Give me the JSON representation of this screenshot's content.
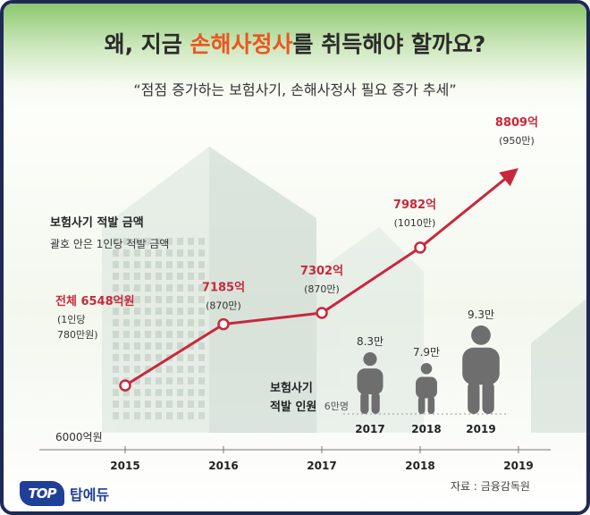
{
  "header": {
    "title_pre": "왜, 지금 ",
    "title_highlight": "손해사정사",
    "title_post": "를 취득해야 할까요?",
    "subtitle": "“점점 증가하는 보험사기, 손해사정사 필요 증가 추세”"
  },
  "legend": {
    "amount_title": "보험사기 적발 금액",
    "amount_note": "괄호 안은 1인당 적발 금액",
    "people_title_line1": "보험사기",
    "people_title_line2": "적발 인원"
  },
  "chart_data": [
    {
      "type": "line",
      "x": [
        "2015",
        "2016",
        "2017",
        "2018",
        "2019"
      ],
      "series": [
        {
          "values": [
            6548,
            7185,
            7302,
            7982,
            8809
          ]
        }
      ],
      "point_labels": [
        "전체 6548억원",
        "7185억",
        "7302억",
        "7982억",
        "8809억"
      ],
      "sub_labels": [
        [
          "(1인당",
          "780만원)"
        ],
        [
          "(870만)"
        ],
        [
          "(870만)"
        ],
        [
          "(1010만)"
        ],
        [
          "(950만)"
        ]
      ],
      "y_baseline_label": "6000억원",
      "ylim": [
        6000,
        9000
      ],
      "colors": {
        "line": "#c8283c",
        "label": "#c8283c"
      }
    },
    {
      "type": "bar",
      "categories": [
        "2017",
        "2018",
        "2019"
      ],
      "values": [
        8.3,
        7.9,
        9.3
      ],
      "value_labels": [
        "8.3만",
        "7.9만",
        "9.3만"
      ],
      "baseline_label": "6만명",
      "baseline": 6.0,
      "colors": {
        "figure": "#6e6e6e"
      }
    }
  ],
  "footer": {
    "brand_logo": "TOP",
    "brand_name": "탑에듀",
    "source": "자료 : 금융감독원"
  }
}
